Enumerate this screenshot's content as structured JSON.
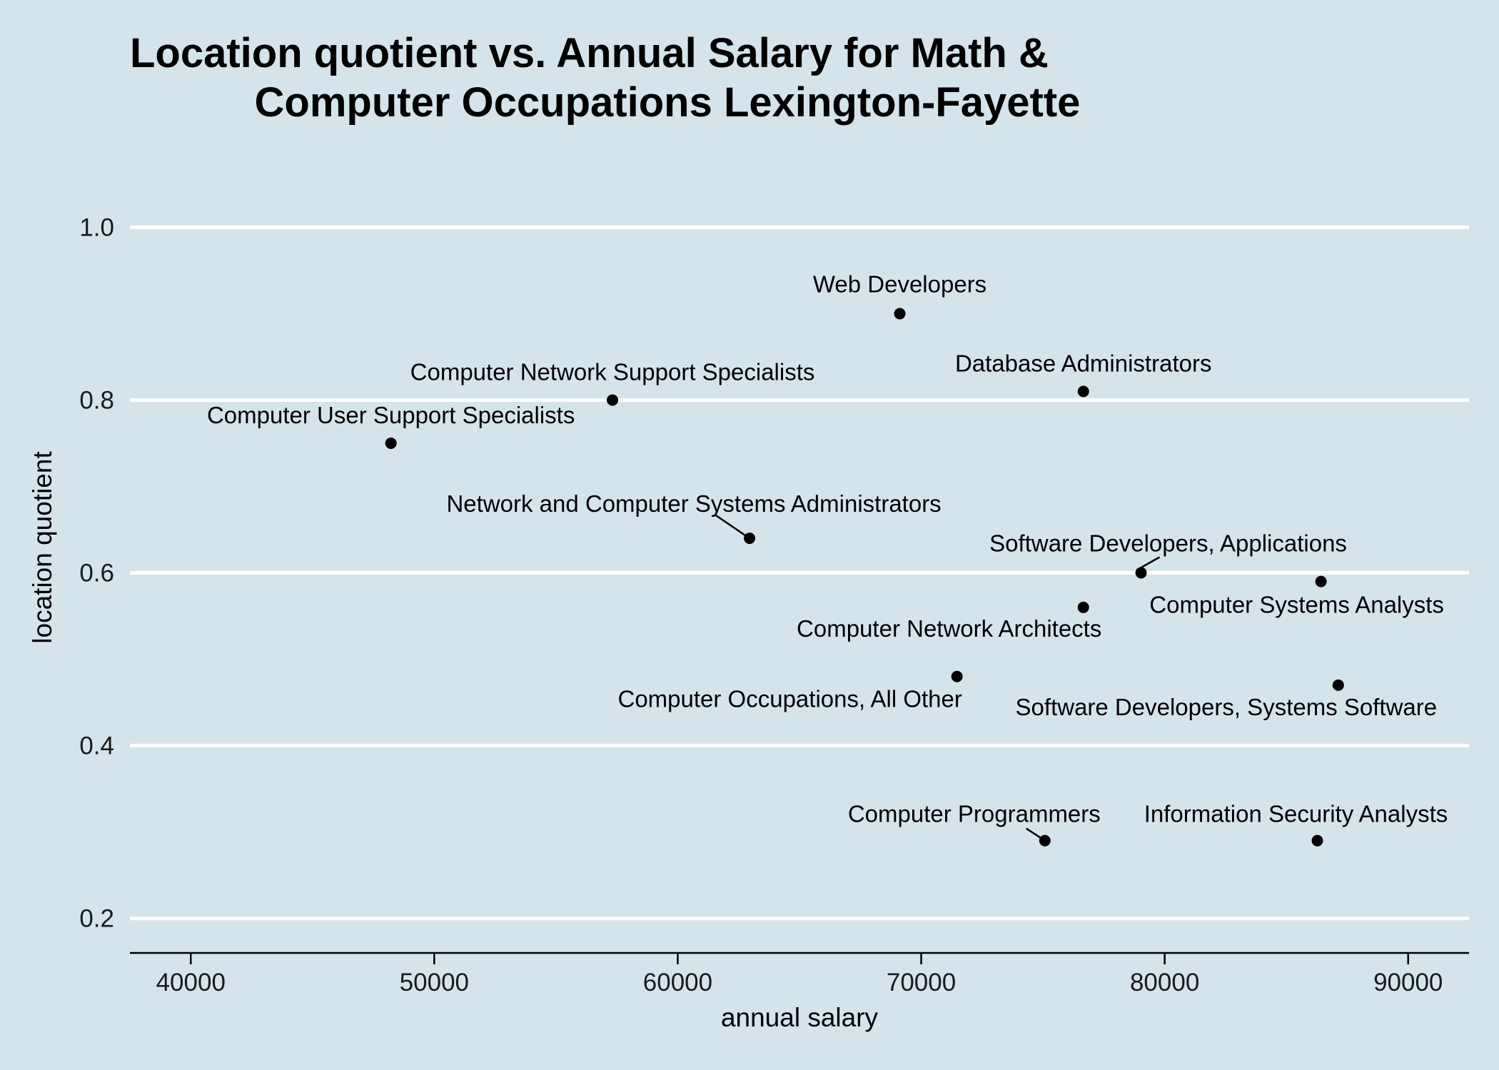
{
  "chart_data": {
    "type": "scatter",
    "title_lines": [
      "Location quotient vs. Annual Salary for Math &",
      "Computer Occupations Lexington-Fayette"
    ],
    "xlabel": "annual salary",
    "ylabel": "location quotient",
    "xlim": [
      37500,
      92500
    ],
    "ylim": [
      0.16,
      1.04
    ],
    "x_ticks": [
      40000,
      50000,
      60000,
      70000,
      80000,
      90000
    ],
    "y_ticks": [
      0.2,
      0.4,
      0.6,
      0.8,
      1.0
    ],
    "y_tick_labels": [
      "0.2",
      "0.4",
      "0.6",
      "0.8",
      "1.0"
    ],
    "grid": {
      "horizontal": true,
      "vertical": false,
      "color": "#ffffff"
    },
    "background_color": "#d5e4eb",
    "point_color": "#000000",
    "points": [
      {
        "label": "Web Developers",
        "x": 69120,
        "y": 0.9
      },
      {
        "label": "Computer Network Support Specialists",
        "x": 57320,
        "y": 0.8
      },
      {
        "label": "Database Administrators",
        "x": 76660,
        "y": 0.81
      },
      {
        "label": "Computer User Support Specialists",
        "x": 48220,
        "y": 0.75
      },
      {
        "label": "Network and Computer Systems Administrators",
        "x": 62950,
        "y": 0.64
      },
      {
        "label": "Software Developers, Applications",
        "x": 79030,
        "y": 0.6
      },
      {
        "label": "Computer Systems Analysts",
        "x": 86420,
        "y": 0.59
      },
      {
        "label": "Computer Network Architects",
        "x": 76660,
        "y": 0.56
      },
      {
        "label": "Computer Occupations, All Other",
        "x": 71470,
        "y": 0.48
      },
      {
        "label": "Software Developers, Systems Software",
        "x": 87130,
        "y": 0.47
      },
      {
        "label": "Computer Programmers",
        "x": 75080,
        "y": 0.29
      },
      {
        "label": "Information Security Analysts",
        "x": 86270,
        "y": 0.29
      }
    ]
  }
}
